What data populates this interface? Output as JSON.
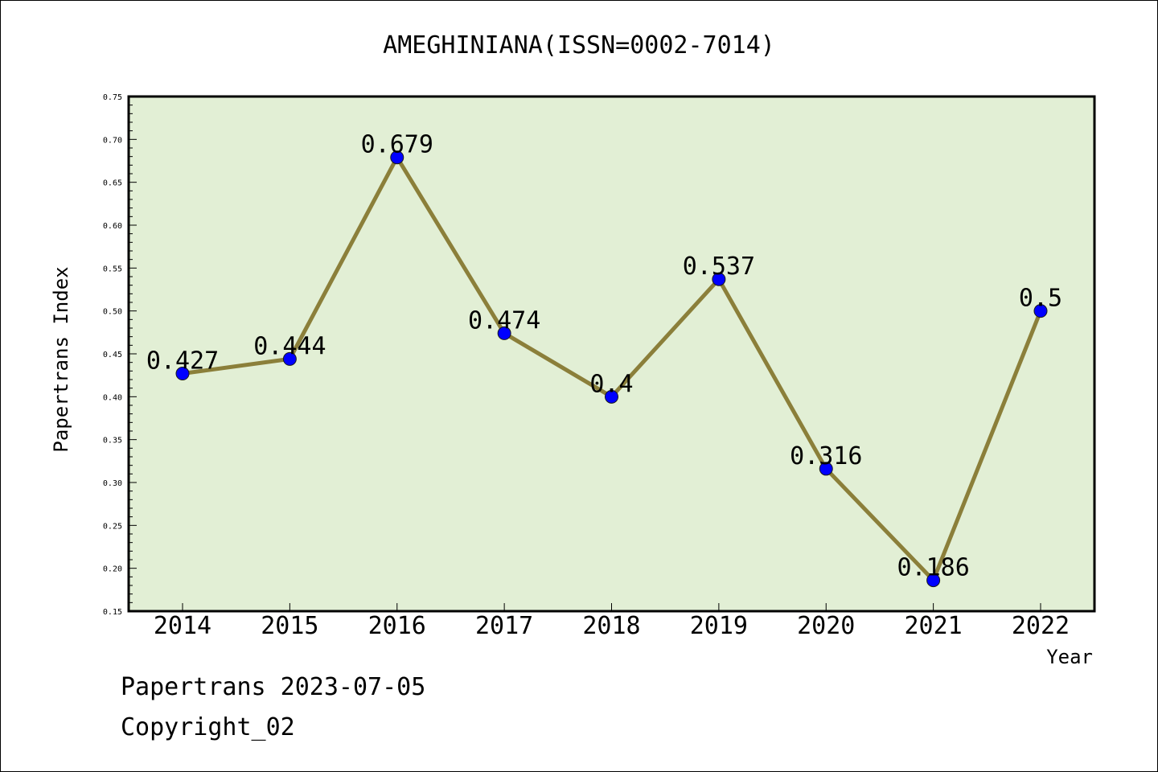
{
  "chart_data": {
    "type": "line",
    "title": "AMEGHINIANA(ISSN=0002-7014)",
    "xlabel": "Year",
    "ylabel": "Papertrans Index",
    "categories": [
      "2014",
      "2015",
      "2016",
      "2017",
      "2018",
      "2019",
      "2020",
      "2021",
      "2022"
    ],
    "values": [
      0.427,
      0.444,
      0.679,
      0.474,
      0.4,
      0.537,
      0.316,
      0.186,
      0.5
    ],
    "data_labels": [
      "0.427",
      "0.444",
      "0.679",
      "0.474",
      "0.4",
      "0.537",
      "0.316",
      "0.186",
      "0.5"
    ],
    "ylim": [
      0.15,
      0.75
    ],
    "yticks": [
      "0.15",
      "0.20",
      "0.25",
      "0.30",
      "0.35",
      "0.40",
      "0.45",
      "0.50",
      "0.55",
      "0.60",
      "0.65",
      "0.70",
      "0.75"
    ],
    "grid": false,
    "colors": {
      "plot_background": "#e2efd5",
      "line": "#8b7f3a",
      "marker": "#0000ff"
    }
  },
  "footer": {
    "line1": "Papertrans 2023-07-05",
    "line2": "Copyright_02"
  }
}
